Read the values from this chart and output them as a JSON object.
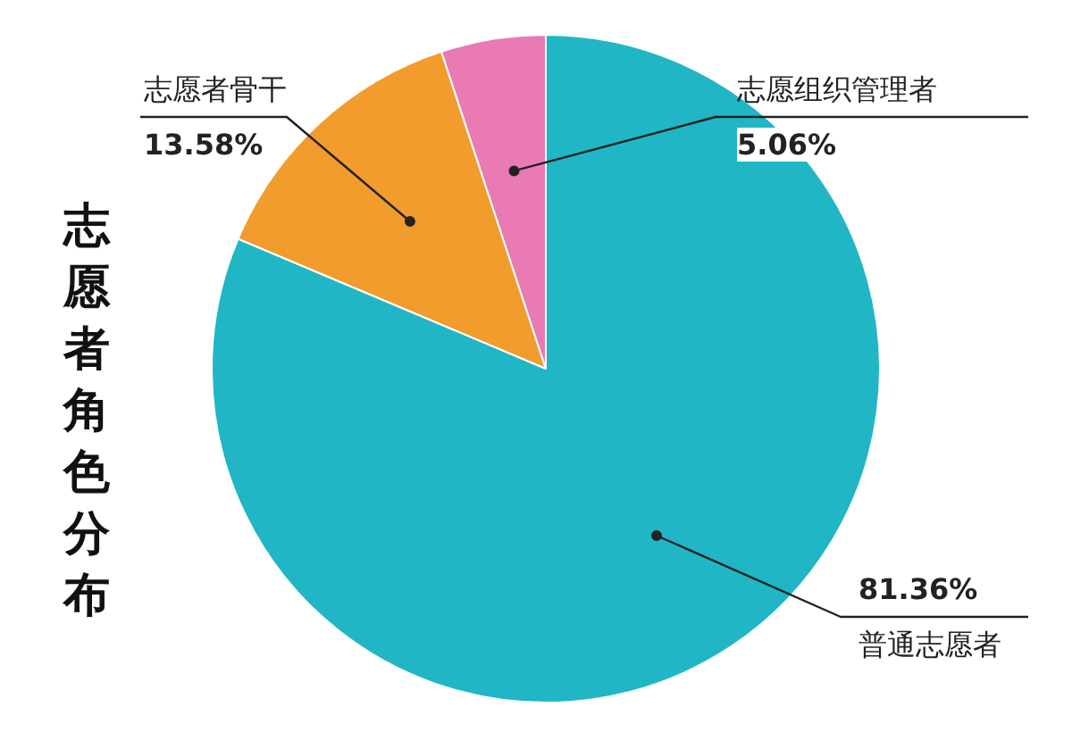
{
  "chart_data": {
    "type": "pie",
    "title": "志愿者角色分布",
    "categories": [
      "普通志愿者",
      "志愿者骨干",
      "志愿组织管理者"
    ],
    "values": [
      81.36,
      13.58,
      5.06
    ],
    "colors": [
      "#20b6c5",
      "#f29c2e",
      "#e97ab3"
    ],
    "value_labels": [
      "81.36%",
      "13.58%",
      "5.06%"
    ]
  }
}
